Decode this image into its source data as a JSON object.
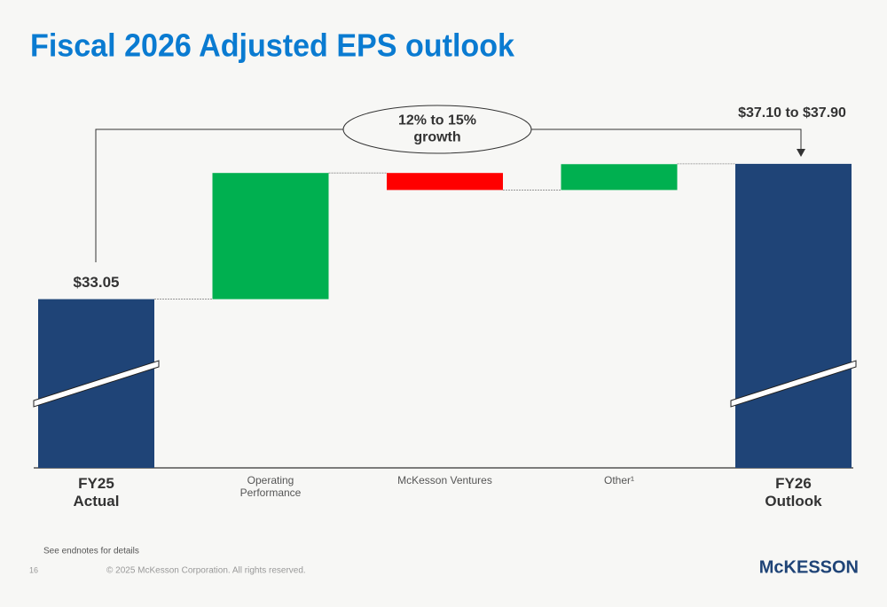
{
  "chart_data": {
    "type": "waterfall",
    "title": "Fiscal 2026 Adjusted EPS outlook",
    "categories": [
      "FY25\nActual",
      "Operating\nPerformance",
      "McKesson Ventures",
      "Other¹",
      "FY26\nOutlook"
    ],
    "measures": [
      "total",
      "delta",
      "delta",
      "delta",
      "total"
    ],
    "values": [
      33.05,
      4.15,
      -0.56,
      0.85,
      37.5
    ],
    "value_labels": [
      "$33.05",
      null,
      null,
      null,
      null
    ],
    "colors": {
      "total": "#1f4477",
      "increase": "#00b050",
      "decrease": "#ff0000"
    },
    "ylim": [
      27.5,
      38.5
    ],
    "axis_break": true,
    "annotations": {
      "outlook_range": "$37.10 to $37.90",
      "growth": "12% to 15%\ngrowth"
    }
  },
  "footnote": "See endnotes for details",
  "page_number": "16",
  "copyright": "© 2025 McKesson Corporation. All rights reserved.",
  "logo": "McKESSON"
}
